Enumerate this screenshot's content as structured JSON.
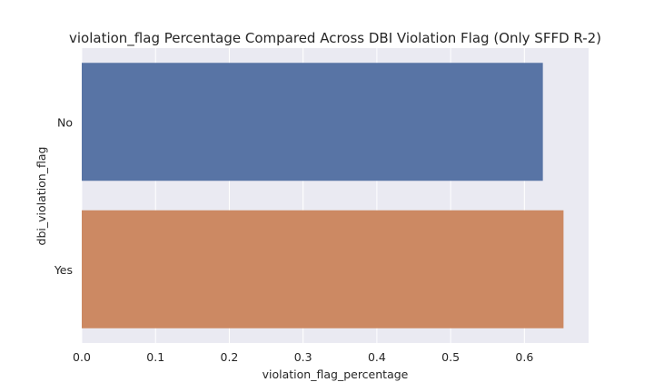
{
  "chart_data": {
    "type": "bar",
    "orientation": "horizontal",
    "title": "violation_flag Percentage Compared Across DBI Violation Flag (Only SFFD R-2)",
    "xlabel": "violation_flag_percentage",
    "ylabel": "dbi_violation_flag",
    "categories": [
      "No",
      "Yes"
    ],
    "values": [
      0.625,
      0.653
    ],
    "colors": [
      "#5874a5",
      "#cc8963"
    ],
    "xlim": [
      0,
      0.687
    ],
    "xticks": [
      0.0,
      0.1,
      0.2,
      0.3,
      0.4,
      0.5,
      0.6
    ],
    "xtick_labels": [
      "0.0",
      "0.1",
      "0.2",
      "0.3",
      "0.4",
      "0.5",
      "0.6"
    ],
    "grid": true,
    "background": "#eaeaf2",
    "grid_color": "#ffffff"
  }
}
